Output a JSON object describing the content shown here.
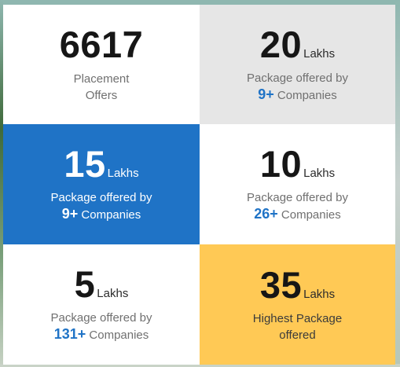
{
  "stats": {
    "offers": {
      "value": "6617",
      "label_line1": "Placement",
      "label_line2": "Offers"
    },
    "pkg_20": {
      "value": "20",
      "unit": "Lakhs",
      "label": "Package offered by",
      "count": "9+",
      "count_suffix": "Companies"
    },
    "pkg_15": {
      "value": "15",
      "unit": "Lakhs",
      "label": "Package offered by",
      "count": "9+",
      "count_suffix": "Companies"
    },
    "pkg_10": {
      "value": "10",
      "unit": "Lakhs",
      "label": "Package offered by",
      "count": "26+",
      "count_suffix": "Companies"
    },
    "pkg_5": {
      "value": "5",
      "unit": "Lakhs",
      "label": "Package offered by",
      "count": "131+",
      "count_suffix": "Companies"
    },
    "pkg_35": {
      "value": "35",
      "unit": "Lakhs",
      "label_line1": "Highest Package",
      "label_line2": "offered"
    }
  },
  "colors": {
    "accent_blue": "#1f73c6",
    "highlight_yellow": "#ffc955",
    "card_grey": "#e6e6e6",
    "card_white": "#ffffff"
  }
}
